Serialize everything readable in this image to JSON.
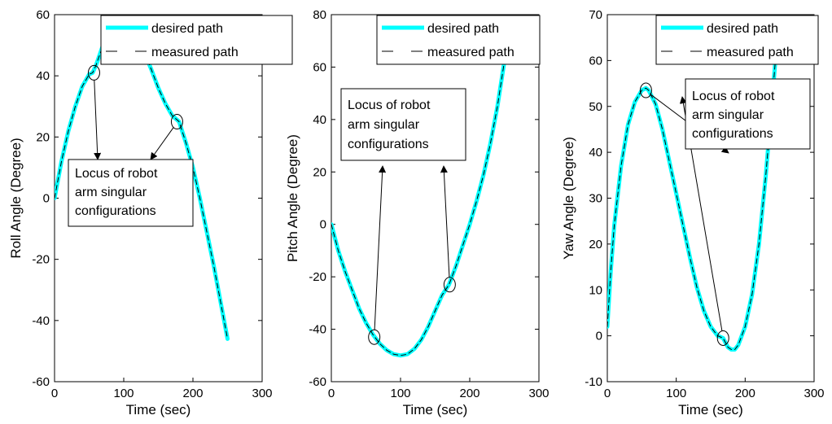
{
  "chart_data": [
    {
      "type": "line",
      "xlabel": "Time (sec)",
      "ylabel": "Roll Angle (Degree)",
      "xlim": [
        0,
        300
      ],
      "ylim": [
        -60,
        60
      ],
      "xticks": [
        "0",
        "100",
        "200",
        "300"
      ],
      "yticks": [
        "-60",
        "-40",
        "-20",
        "0",
        "20",
        "40",
        "60"
      ],
      "legend": {
        "position": "top-right",
        "entries": [
          "desired path",
          "measured path"
        ]
      },
      "series": [
        {
          "name": "desired path",
          "color": "#00FFFF",
          "style": "solid-thick",
          "x": [
            0,
            10,
            20,
            30,
            40,
            50,
            55,
            60,
            70,
            80,
            90,
            100,
            110,
            120,
            130,
            140,
            150,
            160,
            170,
            180,
            190,
            200,
            210,
            220,
            230,
            240,
            250
          ],
          "y": [
            0,
            12,
            22,
            30,
            36.5,
            40.5,
            41,
            43.5,
            50,
            54,
            56,
            56.5,
            55,
            52,
            47.5,
            42,
            36,
            31,
            27,
            25,
            18,
            10,
            0,
            -11,
            -22,
            -34,
            -46
          ]
        },
        {
          "name": "measured path",
          "color": "#000000",
          "style": "dashed",
          "x": [
            0,
            10,
            20,
            30,
            40,
            50,
            55,
            60,
            70,
            80,
            90,
            100,
            110,
            120,
            130,
            140,
            150,
            160,
            170,
            180,
            190,
            200,
            210,
            220,
            230,
            240,
            250
          ],
          "y": [
            0,
            12,
            22,
            30,
            36.5,
            40.5,
            41,
            43.5,
            50,
            54,
            56,
            56.5,
            55,
            52,
            47.5,
            42,
            36,
            31,
            27,
            25,
            18,
            10,
            0,
            -11,
            -22,
            -34,
            -46
          ]
        }
      ],
      "annotation": {
        "lines": [
          "Locus of robot",
          "arm singular",
          "configurations"
        ],
        "points": [
          [
            57,
            41
          ],
          [
            177,
            25
          ]
        ]
      }
    },
    {
      "type": "line",
      "xlabel": "Time (sec)",
      "ylabel": "Pitch Angle (Degree)",
      "xlim": [
        0,
        300
      ],
      "ylim": [
        -60,
        80
      ],
      "xticks": [
        "0",
        "100",
        "200",
        "300"
      ],
      "yticks": [
        "-60",
        "-40",
        "-20",
        "0",
        "20",
        "40",
        "60",
        "80"
      ],
      "legend": {
        "position": "top-right",
        "entries": [
          "desired path",
          "measured path"
        ]
      },
      "series": [
        {
          "name": "desired path",
          "color": "#00FFFF",
          "style": "solid-thick",
          "x": [
            0,
            10,
            20,
            30,
            40,
            50,
            60,
            70,
            80,
            90,
            100,
            110,
            120,
            130,
            140,
            150,
            160,
            170,
            180,
            190,
            200,
            210,
            220,
            230,
            240,
            250
          ],
          "y": [
            0,
            -10,
            -18,
            -25,
            -32,
            -37.5,
            -42,
            -45.5,
            -48,
            -49.5,
            -50,
            -49.5,
            -47.5,
            -44,
            -39,
            -33,
            -27,
            -23,
            -16,
            -8,
            0,
            9,
            19,
            31,
            45,
            62
          ]
        },
        {
          "name": "measured path",
          "color": "#000000",
          "style": "dashed",
          "x": [
            0,
            10,
            20,
            30,
            40,
            50,
            60,
            70,
            80,
            90,
            100,
            110,
            120,
            130,
            140,
            150,
            160,
            170,
            180,
            190,
            200,
            210,
            220,
            230,
            240,
            250
          ],
          "y": [
            0,
            -10,
            -18,
            -25,
            -32,
            -37.5,
            -42,
            -45.5,
            -48,
            -49.5,
            -50,
            -49.5,
            -47.5,
            -44,
            -39,
            -33,
            -27,
            -23,
            -16,
            -8,
            0,
            9,
            19,
            31,
            45,
            62
          ]
        }
      ],
      "annotation": {
        "lines": [
          "Locus of robot",
          "arm singular",
          "configurations"
        ],
        "points": [
          [
            62,
            -43
          ],
          [
            171,
            -23
          ]
        ]
      }
    },
    {
      "type": "line",
      "xlabel": "Time (sec)",
      "ylabel": "Yaw Angle (Degree)",
      "xlim": [
        0,
        300
      ],
      "ylim": [
        -10,
        70
      ],
      "xticks": [
        "0",
        "100",
        "200",
        "300"
      ],
      "yticks": [
        "-10",
        "0",
        "10",
        "20",
        "30",
        "40",
        "50",
        "60",
        "70"
      ],
      "legend": {
        "position": "top-right",
        "entries": [
          "desired path",
          "measured path"
        ]
      },
      "series": [
        {
          "name": "desired path",
          "color": "#00FFFF",
          "style": "solid-thick",
          "x": [
            0,
            5,
            10,
            20,
            30,
            40,
            50,
            56,
            60,
            70,
            80,
            90,
            100,
            110,
            120,
            130,
            140,
            150,
            160,
            168,
            175,
            180,
            185,
            190,
            200,
            210,
            220,
            230,
            240,
            245
          ],
          "y": [
            2,
            14,
            24,
            37,
            46,
            51,
            53.5,
            54,
            53.5,
            50.5,
            45,
            38,
            31,
            24,
            17,
            10.5,
            5.5,
            2,
            0,
            -0.5,
            -2.5,
            -3,
            -3,
            -2,
            2,
            9,
            20,
            35,
            53,
            62
          ]
        },
        {
          "name": "measured path",
          "color": "#000000",
          "style": "dashed",
          "x": [
            0,
            5,
            10,
            20,
            30,
            40,
            50,
            56,
            60,
            70,
            80,
            90,
            100,
            110,
            120,
            130,
            140,
            150,
            160,
            168,
            175,
            180,
            185,
            190,
            200,
            210,
            220,
            230,
            240,
            245
          ],
          "y": [
            2,
            14,
            24,
            37,
            46,
            51,
            53.5,
            54,
            53.5,
            50.5,
            45,
            38,
            31,
            24,
            17,
            10.5,
            5.5,
            2,
            0,
            -0.5,
            -2.5,
            -3,
            -3,
            -2,
            2,
            9,
            20,
            35,
            53,
            62
          ]
        }
      ],
      "annotation": {
        "lines": [
          "Locus of robot",
          "arm singular",
          "configurations"
        ],
        "points": [
          [
            56,
            53.5
          ],
          [
            168,
            -0.5
          ]
        ]
      }
    }
  ]
}
